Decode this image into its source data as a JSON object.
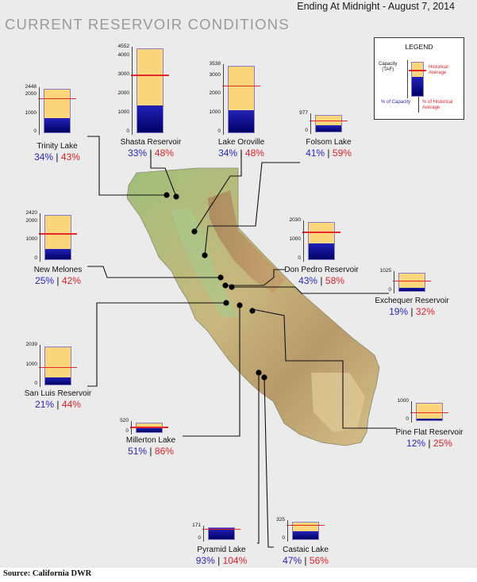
{
  "header": {
    "title": "CURRENT RESERVOIR CONDITIONS",
    "date": "Ending At Midnight - August 7, 2014"
  },
  "legend": {
    "title": "LEGEND",
    "capacity_label": "Capacity\n(TAF)",
    "historical_label": "Historical\nAverage",
    "pct_capacity_label": "% of Capacity",
    "pct_historical_label": "% of Historical\nAverage"
  },
  "source": "Source: California DWR",
  "colors": {
    "capacity": "#fbd67a",
    "storage": "#1a1aa8",
    "historical_line": "#e4282a",
    "pct_capacity_text": "#2929b8",
    "pct_historical_text": "#d8232a"
  },
  "chart_data": {
    "type": "bar",
    "title": "CURRENT RESERVOIR CONDITIONS",
    "ylabel": "TAF",
    "reservoirs": [
      {
        "name": "Trinity Lake",
        "capacity": 2448,
        "storage": 832,
        "historical_avg": 1935,
        "pct_capacity": "34%",
        "pct_historical": "43%",
        "ticks": [
          "2448",
          "2000",
          "1000",
          "0"
        ]
      },
      {
        "name": "Shasta Reservoir",
        "capacity": 4552,
        "storage": 1502,
        "historical_avg": 3129,
        "pct_capacity": "33%",
        "pct_historical": "48%",
        "ticks": [
          "4552",
          "4000",
          "3000",
          "2000",
          "1000",
          "0"
        ]
      },
      {
        "name": "Lake Oroville",
        "capacity": 3538,
        "storage": 1203,
        "historical_avg": 2506,
        "pct_capacity": "34%",
        "pct_historical": "48%",
        "ticks": [
          "3538",
          "3000",
          "2000",
          "1000",
          "0"
        ]
      },
      {
        "name": "Folsom Lake",
        "capacity": 977,
        "storage": 401,
        "historical_avg": 680,
        "pct_capacity": "41%",
        "pct_historical": "59%",
        "ticks": [
          "977",
          "0"
        ]
      },
      {
        "name": "New Melones",
        "capacity": 2420,
        "storage": 605,
        "historical_avg": 1440,
        "pct_capacity": "25%",
        "pct_historical": "42%",
        "ticks": [
          "2420",
          "2000",
          "1000",
          "0"
        ]
      },
      {
        "name": "Don Pedro Reservoir",
        "capacity": 2030,
        "storage": 873,
        "historical_avg": 1505,
        "pct_capacity": "43%",
        "pct_historical": "58%",
        "ticks": [
          "2030",
          "1000",
          "0"
        ]
      },
      {
        "name": "Exchequer Reservoir",
        "capacity": 1025,
        "storage": 195,
        "historical_avg": 609,
        "pct_capacity": "19%",
        "pct_historical": "32%",
        "ticks": [
          "1025",
          "0"
        ]
      },
      {
        "name": "San Luis Reservoir",
        "capacity": 2039,
        "storage": 428,
        "historical_avg": 973,
        "pct_capacity": "21%",
        "pct_historical": "44%",
        "ticks": [
          "2039",
          "1000",
          "0"
        ]
      },
      {
        "name": "Millerton Lake",
        "capacity": 520,
        "storage": 265,
        "historical_avg": 308,
        "pct_capacity": "51%",
        "pct_historical": "86%",
        "ticks": [
          "520",
          "0"
        ]
      },
      {
        "name": "Pine Flat Reservoir",
        "capacity": 1000,
        "storage": 120,
        "historical_avg": 480,
        "pct_capacity": "12%",
        "pct_historical": "25%",
        "ticks": [
          "1000",
          "0"
        ]
      },
      {
        "name": "Pyramid Lake",
        "capacity": 171,
        "storage": 159,
        "historical_avg": 153,
        "pct_capacity": "93%",
        "pct_historical": "104%",
        "ticks": [
          "171",
          "0"
        ]
      },
      {
        "name": "Castaic Lake",
        "capacity": 325,
        "storage": 153,
        "historical_avg": 273,
        "pct_capacity": "47%",
        "pct_historical": "56%",
        "ticks": [
          "325",
          "0"
        ]
      }
    ]
  }
}
